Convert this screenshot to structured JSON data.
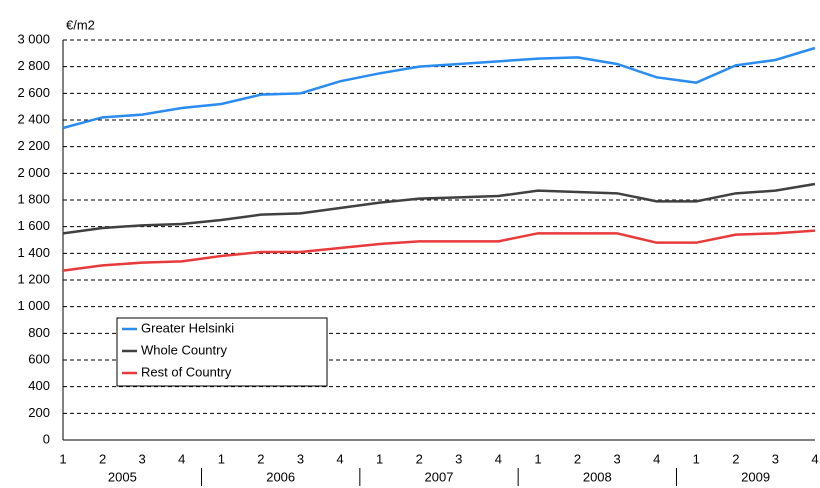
{
  "chart_data": {
    "type": "line",
    "unit_label": "€/m2",
    "categories": [
      "1",
      "2",
      "3",
      "4",
      "1",
      "2",
      "3",
      "4",
      "1",
      "2",
      "3",
      "4",
      "1",
      "2",
      "3",
      "4",
      "1",
      "2",
      "3",
      "4"
    ],
    "x_groups": [
      "2005",
      "2006",
      "2007",
      "2008",
      "2009"
    ],
    "series": [
      {
        "name": "Greater Helsinki",
        "color": "#2a8cf0",
        "values": [
          2340,
          2420,
          2440,
          2490,
          2520,
          2590,
          2600,
          2690,
          2750,
          2800,
          2820,
          2840,
          2860,
          2870,
          2820,
          2720,
          2680,
          2810,
          2850,
          2940
        ]
      },
      {
        "name": "Whole Country",
        "color": "#404040",
        "values": [
          1550,
          1590,
          1610,
          1620,
          1650,
          1690,
          1700,
          1740,
          1780,
          1810,
          1820,
          1830,
          1870,
          1860,
          1850,
          1790,
          1790,
          1850,
          1870,
          1920
        ]
      },
      {
        "name": "Rest of Country",
        "color": "#e83a3a",
        "values": [
          1270,
          1310,
          1330,
          1340,
          1380,
          1410,
          1410,
          1440,
          1470,
          1490,
          1490,
          1490,
          1550,
          1550,
          1550,
          1480,
          1480,
          1540,
          1550,
          1570
        ]
      }
    ],
    "ylim": [
      0,
      3000
    ],
    "yticks": [
      0,
      200,
      400,
      600,
      800,
      {
        "value": 1000,
        "label": "1 000"
      },
      {
        "value": 1200,
        "label": "1 200"
      },
      {
        "value": 1400,
        "label": "1 400"
      },
      {
        "value": 1600,
        "label": "1 600"
      },
      {
        "value": 1800,
        "label": "1 800"
      },
      {
        "value": 2000,
        "label": "2 000"
      },
      {
        "value": 2200,
        "label": "2 200"
      },
      {
        "value": 2400,
        "label": "2 400"
      },
      {
        "value": 2600,
        "label": "2 600"
      },
      {
        "value": 2800,
        "label": "2 800"
      },
      {
        "value": 3000,
        "label": "3 000"
      }
    ],
    "grid": true,
    "legend": "lower left"
  }
}
